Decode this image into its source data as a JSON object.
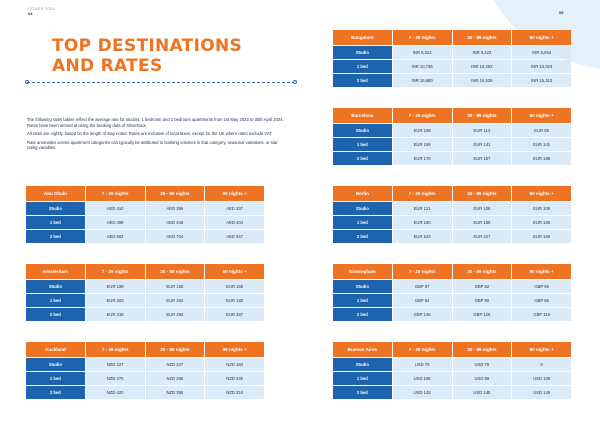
{
  "header": {
    "org": "OONER 2024",
    "page_left": "04",
    "page_right": "05"
  },
  "title": {
    "line1": "TOP DESTINATIONS",
    "line2": "AND RATES"
  },
  "intro": [
    "The following rates tables reflect the average rate for studios, 1 bedroom and 2 bedroom apartments from 1st May 2023 to 30th April 2024. Rates have been arrived at using the booking data of SilverDoor.",
    "All rates are nightly, based on the length of stay noted. Rates are inclusive of local taxes, except for the UK where rates exclude VAT.",
    "Rate anomalies across apartment categories can typically be attributed to booking volumes in that category, seasonal variations, or star rating variables."
  ],
  "columns": [
    "7 - 29 nights",
    "30 - 89 nights",
    "90 nights +"
  ],
  "tables": [
    {
      "city": "Bangalore",
      "rows": [
        {
          "type": "Studio",
          "values": [
            "INR 8,322",
            "INR 8,422",
            "INR 8,094"
          ]
        },
        {
          "type": "1 bed",
          "values": [
            "INR 10,736",
            "INR 10,292",
            "INR 10,023"
          ]
        },
        {
          "type": "2 bed",
          "values": [
            "INR 16,680",
            "INR 16,628",
            "INR 15,313"
          ]
        }
      ]
    },
    {
      "city": "Barcelona",
      "rows": [
        {
          "type": "Studio",
          "values": [
            "EUR 108",
            "EUR 113",
            "EUR 85"
          ]
        },
        {
          "type": "1 bed",
          "values": [
            "EUR 158",
            "EUR 141",
            "EUR 141"
          ]
        },
        {
          "type": "2 bed",
          "values": [
            "EUR 178",
            "EUR 157",
            "EUR 198"
          ]
        }
      ]
    },
    {
      "city": "Abu Dhabi",
      "rows": [
        {
          "type": "Studio",
          "values": [
            "AED 410",
            "AED 396",
            "AED 337"
          ]
        },
        {
          "type": "1 bed",
          "values": [
            "AED 498",
            "AED 446",
            "AED 404"
          ]
        },
        {
          "type": "2 bed",
          "values": [
            "AED 652",
            "AED 704",
            "AED 647"
          ]
        }
      ]
    },
    {
      "city": "Berlin",
      "rows": [
        {
          "type": "Studio",
          "values": [
            "EUR 121",
            "EUR 106",
            "EUR 105"
          ]
        },
        {
          "type": "1 bed",
          "values": [
            "EUR 180",
            "EUR 168",
            "EUR 159"
          ]
        },
        {
          "type": "2 bed",
          "values": [
            "EUR 523",
            "EUR 227",
            "EUR 159"
          ]
        }
      ]
    },
    {
      "city": "Amsterdam",
      "rows": [
        {
          "type": "Studio",
          "values": [
            "EUR 198",
            "EUR 166",
            "EUR 166"
          ]
        },
        {
          "type": "1 bed",
          "values": [
            "EUR 203",
            "EUR 202",
            "EUR 192"
          ]
        },
        {
          "type": "2 bed",
          "values": [
            "EUR 318",
            "EUR 294",
            "EUR 287"
          ]
        }
      ]
    },
    {
      "city": "Birmingham",
      "rows": [
        {
          "type": "Studio",
          "values": [
            "GBP 97",
            "GBP 82",
            "GBP 66"
          ]
        },
        {
          "type": "1 bed",
          "values": [
            "GBP 94",
            "GBP 90",
            "GBP 65"
          ]
        },
        {
          "type": "2 bed",
          "values": [
            "GBP 136",
            "GBP 128",
            "GBP 119"
          ]
        }
      ]
    },
    {
      "city": "Auckland",
      "rows": [
        {
          "type": "Studio",
          "values": [
            "NZD 227",
            "NZD 227",
            "NZD 184"
          ]
        },
        {
          "type": "1 bed",
          "values": [
            "NZD 270",
            "NZD 265",
            "NZD 235"
          ]
        },
        {
          "type": "2 bed",
          "values": [
            "NZD 420",
            "NZD 355",
            "NZD 316"
          ]
        }
      ]
    },
    {
      "city": "Buenos Aires",
      "rows": [
        {
          "type": "Studio",
          "values": [
            "USD 79",
            "USD 78",
            "X"
          ]
        },
        {
          "type": "1 bed",
          "values": [
            "USD 105",
            "USD 98",
            "USD 106"
          ]
        },
        {
          "type": "2 bed",
          "values": [
            "USD 142",
            "USD 145",
            "USD 149"
          ]
        }
      ]
    }
  ],
  "colors": {
    "accent_orange": "#ee7322",
    "row_blue": "#1d63ad",
    "cell_light": "#dbeaf7",
    "navy_text": "#1f2d4d"
  }
}
